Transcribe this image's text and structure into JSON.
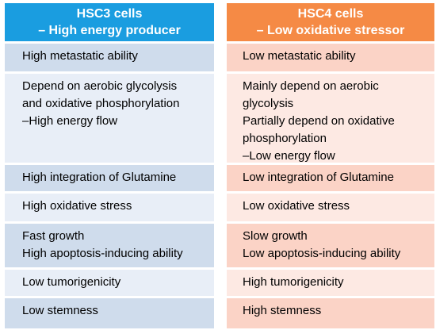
{
  "left": {
    "header": [
      "HSC3 cells",
      "– High energy producer"
    ],
    "rows": [
      [
        "High metastatic ability"
      ],
      [
        "Depend on aerobic glycolysis",
        "and oxidative phosphorylation",
        "–High energy flow"
      ],
      [
        "High integration of Glutamine"
      ],
      [
        "High oxidative stress"
      ],
      [
        "Fast growth",
        "High apoptosis-inducing ability"
      ],
      [
        "Low tumorigenicity"
      ],
      [
        "Low stemness"
      ]
    ]
  },
  "right": {
    "header": [
      "HSC4 cells",
      "– Low oxidative stressor"
    ],
    "rows": [
      [
        "Low metastatic ability"
      ],
      [
        "Mainly depend on aerobic",
        "glycolysis",
        "Partially depend on oxidative",
        "phosphorylation",
        "–Low energy flow"
      ],
      [
        "Low integration of Glutamine"
      ],
      [
        "Low oxidative stress"
      ],
      [
        "Slow growth",
        "Low apoptosis-inducing ability"
      ],
      [
        "High tumorigenicity"
      ],
      [
        "High stemness"
      ]
    ]
  },
  "colors": {
    "left_header": "#1a9de0",
    "right_header": "#f58a45",
    "left_row_dark": "#cfdcec",
    "left_row_light": "#e8eef7",
    "right_row_dark": "#fbd3c6",
    "right_row_light": "#fde9e3"
  }
}
